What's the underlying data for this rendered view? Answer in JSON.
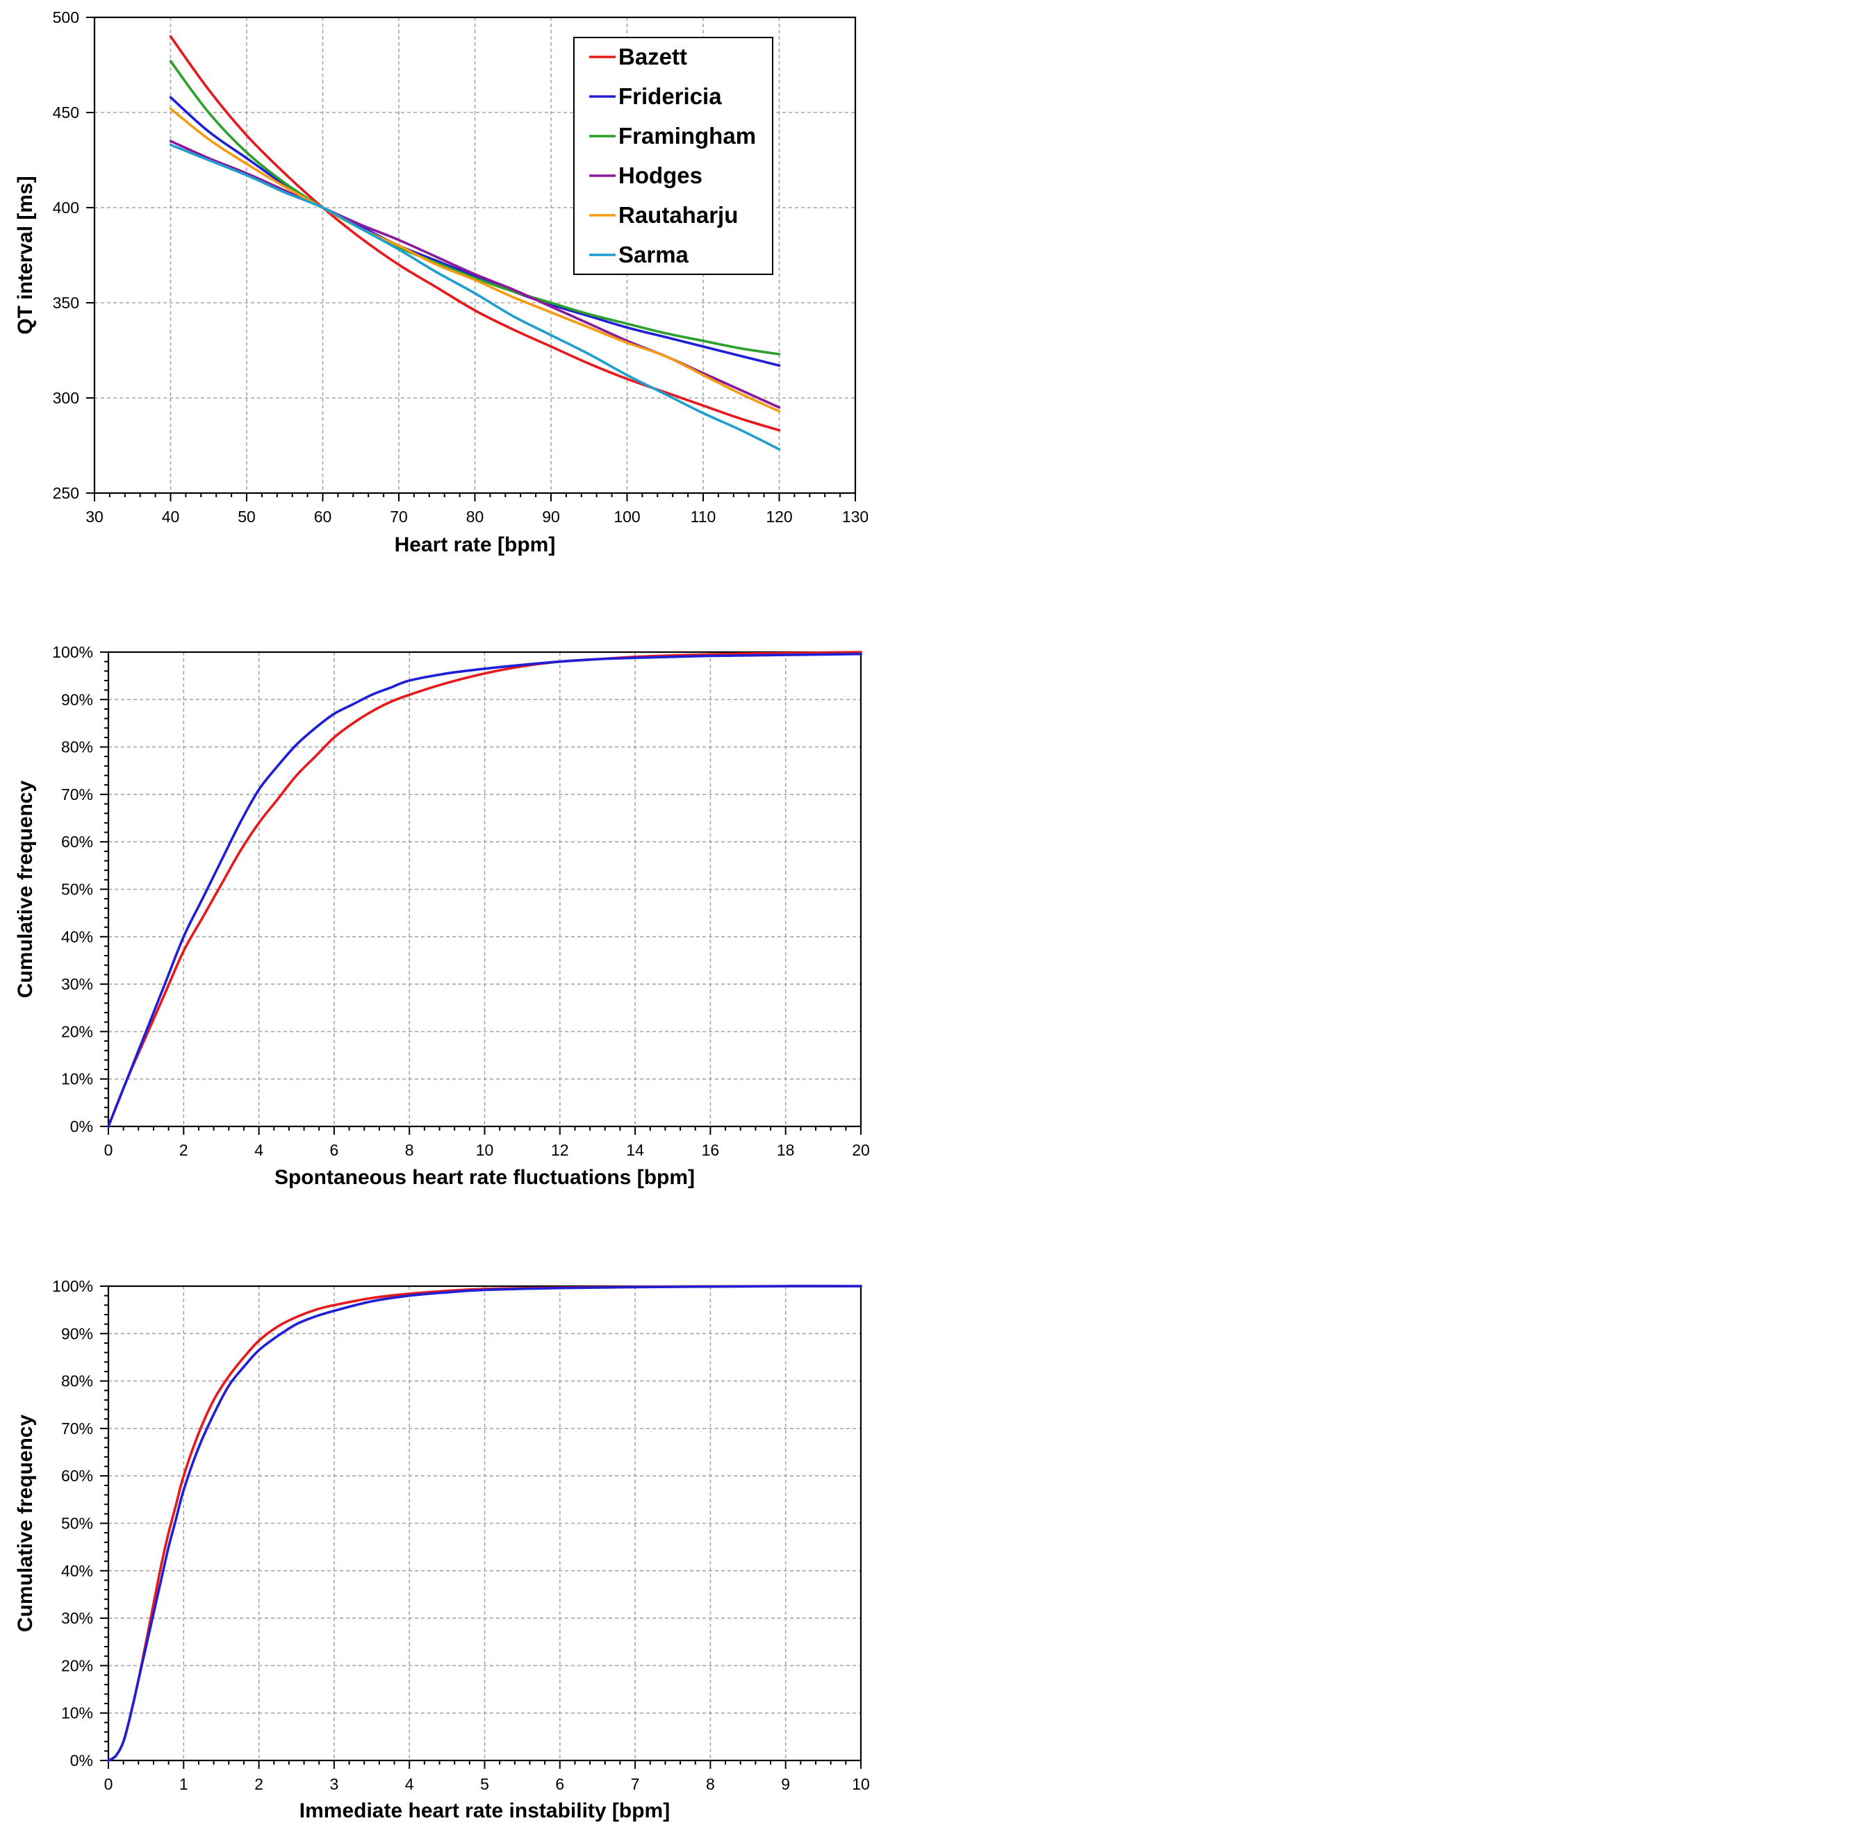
{
  "chart_data": [
    {
      "type": "line",
      "xlabel": "Heart rate [bpm]",
      "ylabel": "QT interval [ms]",
      "xlim": [
        30,
        130
      ],
      "ylim": [
        250,
        500
      ],
      "xticks": [
        30,
        40,
        50,
        60,
        70,
        80,
        90,
        100,
        110,
        120,
        130
      ],
      "yticks": [
        250,
        300,
        350,
        400,
        450,
        500
      ],
      "xtick_labels": [
        "30",
        "40",
        "50",
        "60",
        "70",
        "80",
        "90",
        "100",
        "110",
        "120",
        "130"
      ],
      "ytick_labels": [
        "250",
        "300",
        "350",
        "400",
        "450",
        "500"
      ],
      "grid": true,
      "legend_position": "top-right",
      "x": [
        40,
        45,
        50,
        55,
        60,
        65,
        70,
        75,
        80,
        85,
        90,
        95,
        100,
        105,
        110,
        115,
        120
      ],
      "series": [
        {
          "name": "Bazett",
          "color": "#e41a1c",
          "values": [
            490,
            462,
            438,
            418,
            400,
            384,
            370,
            358,
            346,
            336,
            327,
            318,
            310,
            303,
            296,
            289,
            283
          ]
        },
        {
          "name": "Fridericia",
          "color": "#1f1fd6",
          "values": [
            458,
            440,
            426,
            412,
            400,
            390,
            380,
            372,
            364,
            356,
            349,
            343,
            337,
            332,
            327,
            322,
            317
          ]
        },
        {
          "name": "Framingham",
          "color": "#2ca02c",
          "values": [
            477,
            450,
            429,
            413,
            400,
            389,
            379,
            371,
            363,
            356,
            350,
            344,
            339,
            334,
            330,
            326,
            323
          ]
        },
        {
          "name": "Hodges",
          "color": "#8b1a9a",
          "values": [
            435,
            426,
            418,
            409,
            400,
            391,
            383,
            374,
            365,
            357,
            348,
            339,
            330,
            322,
            313,
            304,
            295
          ]
        },
        {
          "name": "Rautaharju",
          "color": "#f39c12",
          "values": [
            452,
            436,
            423,
            411,
            400,
            389,
            380,
            370,
            362,
            353,
            345,
            337,
            329,
            322,
            312,
            302,
            293
          ]
        },
        {
          "name": "Sarma",
          "color": "#1e9fcf",
          "values": [
            433,
            425,
            417,
            408,
            400,
            389,
            378,
            366,
            355,
            343,
            333,
            323,
            312,
            302,
            292,
            283,
            273
          ]
        }
      ]
    },
    {
      "type": "line",
      "xlabel": "Spontaneous heart rate fluctuations [bpm]",
      "ylabel": "Cumulative frequency",
      "xlim": [
        0,
        20
      ],
      "ylim": [
        0,
        100
      ],
      "xticks": [
        0,
        2,
        4,
        6,
        8,
        10,
        12,
        14,
        16,
        18,
        20
      ],
      "yticks": [
        0,
        10,
        20,
        30,
        40,
        50,
        60,
        70,
        80,
        90,
        100
      ],
      "xtick_labels": [
        "0",
        "2",
        "4",
        "6",
        "8",
        "10",
        "12",
        "14",
        "16",
        "18",
        "20"
      ],
      "ytick_labels": [
        "0%",
        "10%",
        "20%",
        "30%",
        "40%",
        "50%",
        "60%",
        "70%",
        "80%",
        "90%",
        "100%"
      ],
      "grid": true,
      "x": [
        0,
        0.5,
        1,
        1.5,
        2,
        2.5,
        3,
        3.5,
        4,
        4.5,
        5,
        5.5,
        6,
        6.5,
        7,
        7.5,
        8,
        9,
        10,
        11,
        12,
        13,
        14,
        15,
        16,
        17,
        18,
        19,
        20
      ],
      "series": [
        {
          "color": "#e41a1c",
          "values": [
            0,
            10,
            19,
            28,
            37,
            44,
            51,
            58,
            64,
            69,
            74,
            78,
            82,
            85,
            87.5,
            89.5,
            91,
            93.5,
            95.5,
            97,
            98,
            98.5,
            99,
            99.3,
            99.5,
            99.7,
            99.8,
            99.9,
            100
          ]
        },
        {
          "color": "#1f1fd6",
          "values": [
            0,
            10,
            20,
            30,
            40,
            48,
            56,
            64,
            71,
            76,
            80.5,
            84,
            87,
            89,
            91,
            92.5,
            94,
            95.5,
            96.5,
            97.3,
            98,
            98.5,
            98.8,
            99,
            99.2,
            99.3,
            99.4,
            99.5,
            99.6
          ]
        }
      ]
    },
    {
      "type": "line",
      "xlabel": "Immediate heart rate instability [bpm]",
      "ylabel": "Cumulative frequency",
      "xlim": [
        0,
        10
      ],
      "ylim": [
        0,
        100
      ],
      "xticks": [
        0,
        1,
        2,
        3,
        4,
        5,
        6,
        7,
        8,
        9,
        10
      ],
      "yticks": [
        0,
        10,
        20,
        30,
        40,
        50,
        60,
        70,
        80,
        90,
        100
      ],
      "xtick_labels": [
        "0",
        "1",
        "2",
        "3",
        "4",
        "5",
        "6",
        "7",
        "8",
        "9",
        "10"
      ],
      "ytick_labels": [
        "0%",
        "10%",
        "20%",
        "30%",
        "40%",
        "50%",
        "60%",
        "70%",
        "80%",
        "90%",
        "100%"
      ],
      "grid": true,
      "x": [
        0,
        0.1,
        0.2,
        0.3,
        0.4,
        0.5,
        0.6,
        0.7,
        0.8,
        0.9,
        1.0,
        1.2,
        1.4,
        1.6,
        1.8,
        2.0,
        2.25,
        2.5,
        2.75,
        3.0,
        3.5,
        4.0,
        4.5,
        5.0,
        6.0,
        7.0,
        8.0,
        9.0,
        10.0
      ],
      "series": [
        {
          "color": "#e41a1c",
          "values": [
            0,
            1,
            4,
            10,
            17,
            25,
            33,
            41,
            48,
            54,
            60,
            69,
            76,
            81,
            85,
            88.5,
            91.5,
            93.5,
            95,
            96,
            97.5,
            98.4,
            99,
            99.4,
            99.7,
            99.85,
            99.95,
            100,
            100
          ]
        },
        {
          "color": "#1f1fd6",
          "values": [
            0,
            1,
            4,
            10,
            17,
            24,
            31,
            38,
            45,
            51,
            57,
            66,
            73,
            79,
            83,
            86.5,
            89.5,
            92,
            93.6,
            94.8,
            96.8,
            98,
            98.7,
            99.2,
            99.6,
            99.8,
            99.9,
            100,
            100
          ]
        }
      ]
    }
  ]
}
